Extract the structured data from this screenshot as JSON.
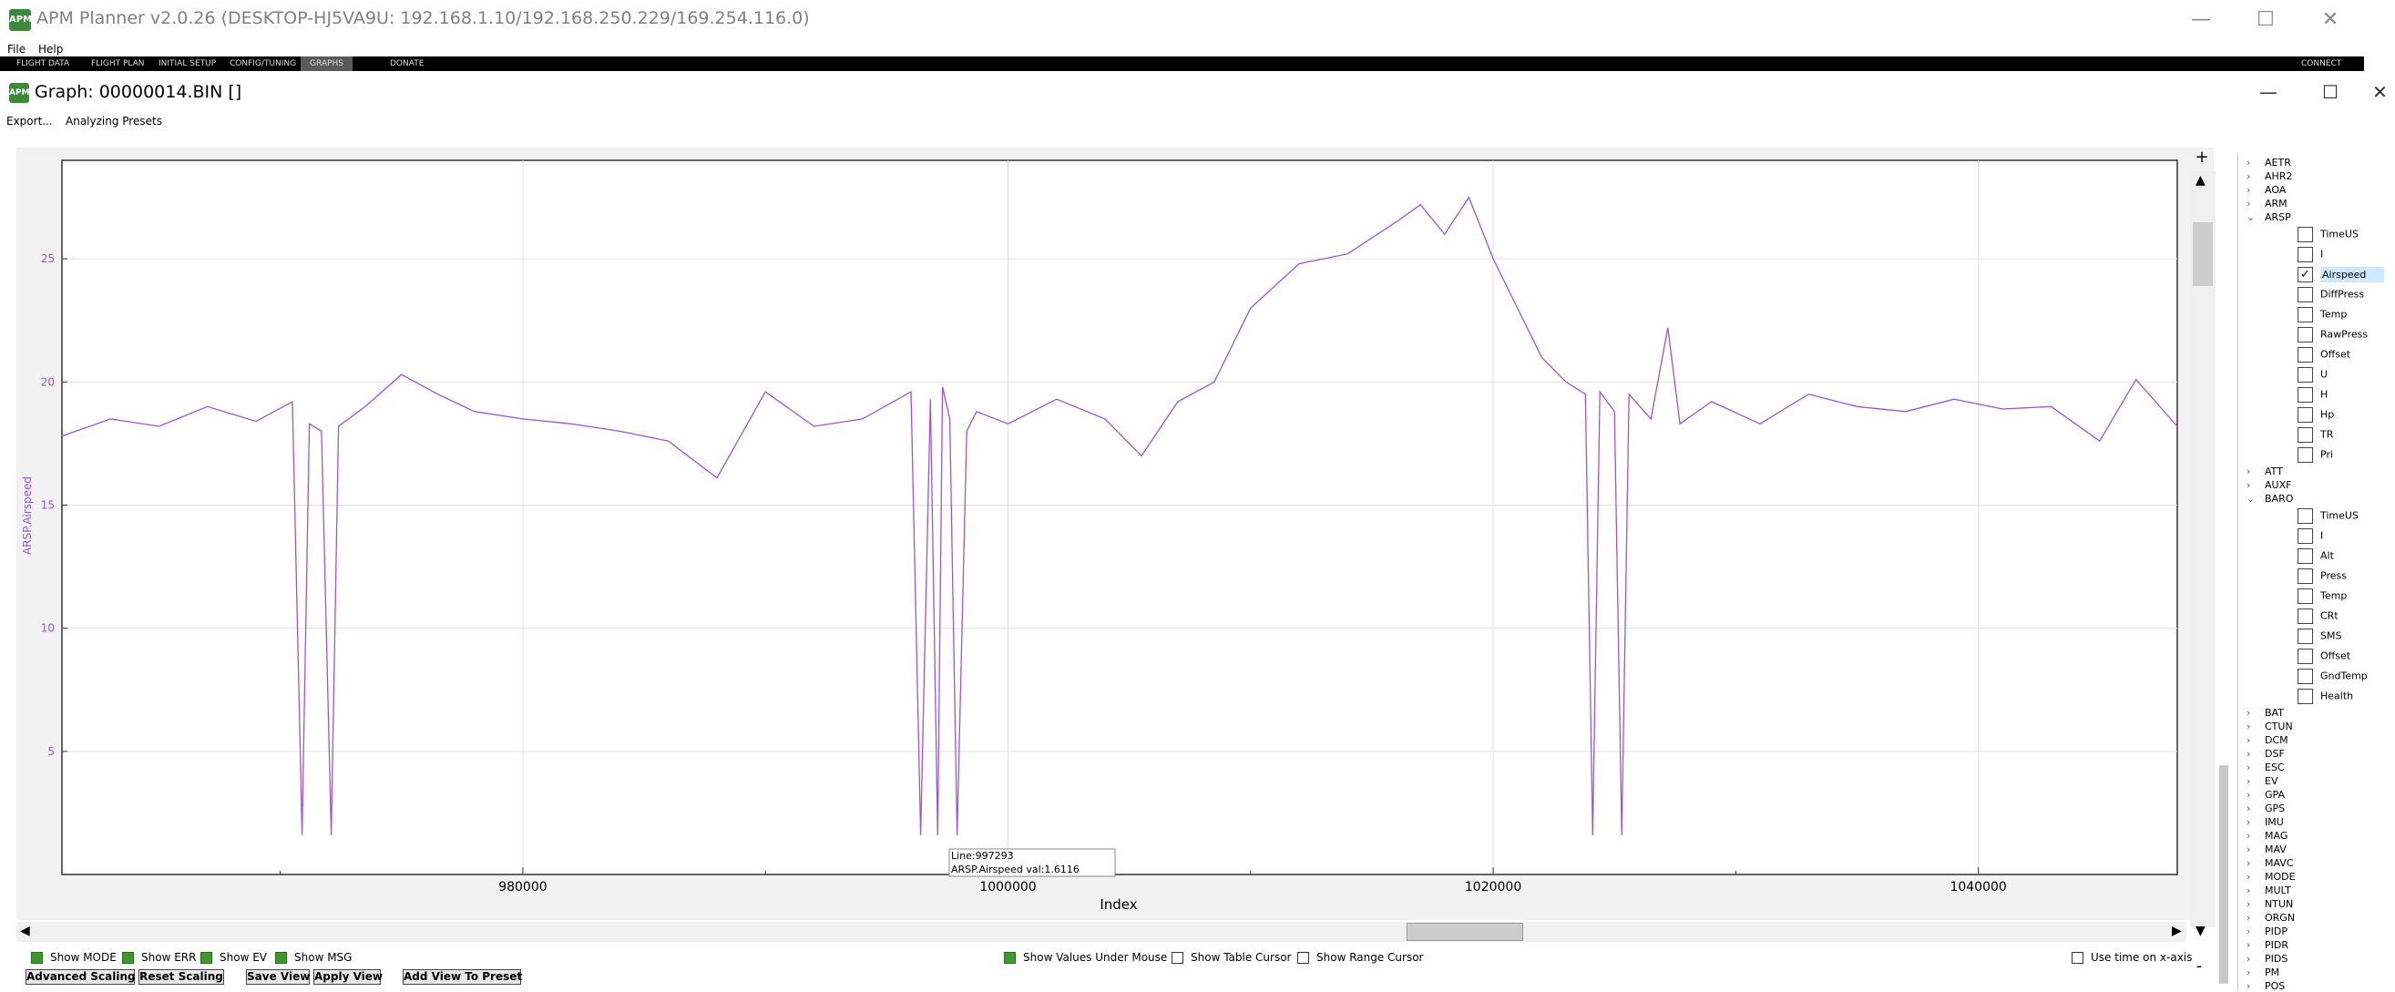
{
  "window": {
    "title": "APM Planner v2.0.26 (DESKTOP-HJ5VA9U: 192.168.1.10/192.168.250.229/169.254.116.0)",
    "minimize": "—",
    "maximize": "☐",
    "close": "✕",
    "logo": "APM"
  },
  "menu": [
    "File",
    "Help"
  ],
  "nav": {
    "items": [
      "FLIGHT DATA",
      "FLIGHT PLAN",
      "INITIAL SETUP",
      "CONFIG/TUNING",
      "GRAPHS",
      "DONATE"
    ],
    "connect": "CONNECT",
    "active": "GRAPHS"
  },
  "graph_window": {
    "title": "Graph: 00000014.BIN []",
    "minimize": "—",
    "maximize": "☐",
    "close": "✕"
  },
  "toolbar": {
    "export": "Export...",
    "presets": "Analyzing Presets"
  },
  "chart_data": {
    "type": "line",
    "xlabel": "Index",
    "ylabel": "ARSP.Airspeed",
    "x_ticks": [
      "980000",
      "1000000",
      "1020000",
      "1040000"
    ],
    "y_ticks": [
      "5",
      "10",
      "15",
      "20",
      "25"
    ],
    "xlim": [
      961000,
      1048200
    ],
    "ylim": [
      0,
      29
    ],
    "grid": true,
    "color": "#9a55d6",
    "series": [
      {
        "name": "ARSP.Airspeed",
        "x": [
          961000,
          963000,
          965000,
          967000,
          969000,
          970500,
          970900,
          971200,
          971700,
          972100,
          972400,
          973500,
          975000,
          976500,
          978000,
          980000,
          982000,
          984000,
          986000,
          988000,
          990000,
          992000,
          994000,
          996000,
          996400,
          996800,
          997100,
          997300,
          997600,
          997900,
          998300,
          998700,
          1000000,
          1002000,
          1004000,
          1005500,
          1007000,
          1008500,
          1010000,
          1012000,
          1014000,
          1016000,
          1017000,
          1018000,
          1019000,
          1020000,
          1022000,
          1023000,
          1023800,
          1024100,
          1024400,
          1025000,
          1025300,
          1025600,
          1026500,
          1027200,
          1027700,
          1029000,
          1031000,
          1033000,
          1035000,
          1037000,
          1039000,
          1041000,
          1043000,
          1045000,
          1046500,
          1048200
        ],
        "y": [
          17.8,
          18.5,
          18.2,
          19.0,
          18.4,
          19.2,
          1.6,
          18.3,
          18.0,
          1.6,
          18.2,
          19.0,
          20.3,
          19.5,
          18.8,
          18.5,
          18.3,
          18.0,
          17.6,
          16.1,
          19.6,
          18.2,
          18.5,
          19.6,
          1.6,
          19.3,
          1.6,
          19.8,
          18.5,
          1.6,
          18.0,
          18.8,
          18.3,
          19.3,
          18.5,
          17.0,
          19.2,
          20.0,
          23.0,
          24.8,
          25.2,
          26.5,
          27.2,
          26.0,
          27.5,
          25.0,
          21.0,
          20.0,
          19.5,
          1.6,
          19.6,
          18.8,
          1.6,
          19.5,
          18.5,
          22.2,
          18.3,
          19.2,
          18.3,
          19.5,
          19.0,
          18.8,
          19.3,
          18.9,
          19.0,
          17.6,
          20.1,
          18.2
        ]
      }
    ]
  },
  "tooltip": {
    "line1": "Line:997293",
    "line2": "ARSP.Airspeed val:1.6116"
  },
  "zoom": {
    "plus": "+",
    "minus": "-"
  },
  "options": {
    "show_mode": "Show MODE",
    "show_err": "Show ERR",
    "show_ev": "Show EV",
    "show_msg": "Show MSG",
    "values_under_mouse": "Show Values Under Mouse",
    "table_cursor": "Show Table Cursor",
    "range_cursor": "Show Range Cursor",
    "time_on_x": "Use time on x-axis"
  },
  "buttons": {
    "advanced_scaling": "Advanced Scaling",
    "reset_scaling": "Reset Scaling",
    "save_view": "Save View",
    "apply_view": "Apply View",
    "add_view_to_preset": "Add View To Preset"
  },
  "tree": {
    "groups_top": [
      "AETR",
      "AHR2",
      "AOA",
      "ARM"
    ],
    "arsp": {
      "label": "ARSP",
      "children": [
        "TimeUS",
        "I",
        "Airspeed",
        "DiffPress",
        "Temp",
        "RawPress",
        "Offset",
        "U",
        "H",
        "Hp",
        "TR",
        "Pri"
      ],
      "checked": "Airspeed"
    },
    "groups_mid": [
      "ATT",
      "AUXF"
    ],
    "baro": {
      "label": "BARO",
      "children": [
        "TimeUS",
        "I",
        "Alt",
        "Press",
        "Temp",
        "CRt",
        "SMS",
        "Offset",
        "GndTemp",
        "Health"
      ]
    },
    "groups_bottom": [
      "BAT",
      "CTUN",
      "DCM",
      "DSF",
      "ESC",
      "EV",
      "GPA",
      "GPS",
      "IMU",
      "MAG",
      "MAV",
      "MAVC",
      "MODE",
      "MULT",
      "NTUN",
      "ORGN",
      "PIDP",
      "PIDR",
      "PIDS",
      "PM",
      "POS"
    ]
  }
}
